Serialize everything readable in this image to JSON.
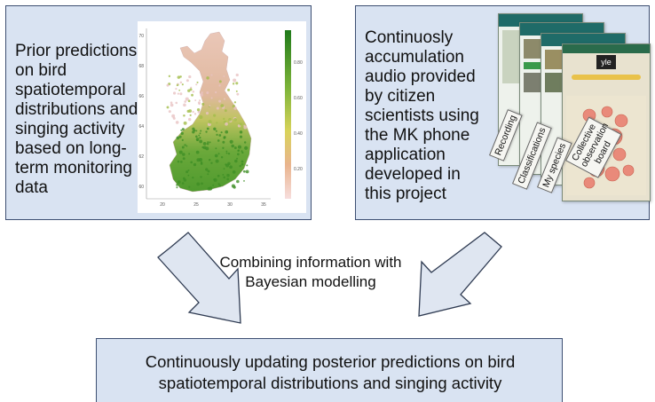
{
  "left_box": {
    "text": "Prior predictions on bird spatiotemporal distributions and singing activity based on long-term monitoring data"
  },
  "map_figure": {
    "legend_ticks": [
      "0.80",
      "0.60",
      "0.40",
      "0.20"
    ],
    "y_ticks": [
      "70",
      "68",
      "66",
      "64",
      "62",
      "60"
    ],
    "x_ticks": [
      "20",
      "25",
      "30",
      "35"
    ],
    "colors": {
      "high": "#2e8b22",
      "mid": "#c8d24a",
      "low": "#f2cccc"
    }
  },
  "right_box": {
    "text": "Continuosly accumulation audio provided by citizen scientists using the MK phone application developed in this project",
    "app_tags": [
      "Recording",
      "Classifications",
      "My species",
      "Collective observation board"
    ],
    "app_logo": "yle"
  },
  "center_label": {
    "text": "Combining information with Bayesian modelling"
  },
  "bottom_box": {
    "text": "Continuously updating posterior predictions on bird spatiotemporal distributions and singing activity"
  },
  "colors": {
    "box_fill": "#d9e3f2",
    "box_border": "#3d4f72",
    "arrow_fill": "#dfe6f1"
  }
}
